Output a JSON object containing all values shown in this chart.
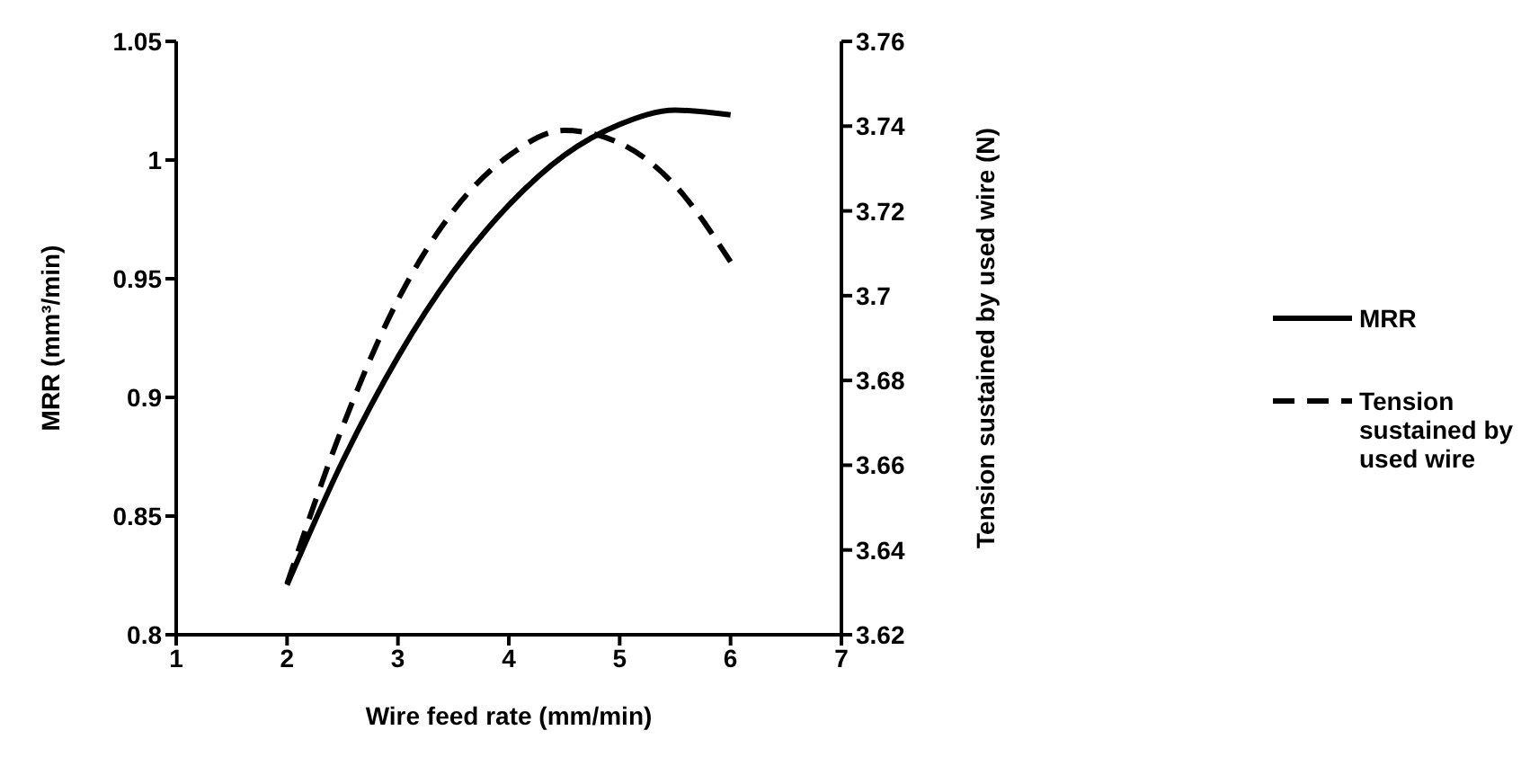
{
  "chart_data": {
    "type": "line",
    "xlabel": "Wire feed rate (mm/min)",
    "ylabel": "MRR (mm³/min)",
    "y2label": "Tension sustained by used wire (N)",
    "x": [
      2,
      2.5,
      3,
      3.5,
      4,
      4.5,
      5,
      5.5,
      6
    ],
    "series": [
      {
        "name": "MRR",
        "color": "#000000",
        "line_style": "solid",
        "values": [
          0.821,
          0.873,
          0.917,
          0.953,
          0.981,
          1.002,
          1.015,
          1.021,
          1.019
        ]
      },
      {
        "name": "Tension sustained by used wire",
        "color": "#000000",
        "line_style": "dashed",
        "axis": "y2",
        "values": [
          3.632,
          3.669,
          3.699,
          3.72,
          3.733,
          3.739,
          3.736,
          3.726,
          3.708
        ]
      }
    ],
    "xlim": [
      1,
      7
    ],
    "xticks": [
      1,
      2,
      3,
      4,
      5,
      6,
      7
    ],
    "ylim": [
      0.8,
      1.05
    ],
    "yticks": [
      0.8,
      0.85,
      0.9,
      0.95,
      1,
      1.05
    ],
    "y2lim": [
      3.62,
      3.76
    ],
    "y2ticks": [
      3.62,
      3.64,
      3.66,
      3.68,
      3.7,
      3.72,
      3.74,
      3.76
    ],
    "grid": false,
    "legend": "right",
    "marker": "none"
  }
}
